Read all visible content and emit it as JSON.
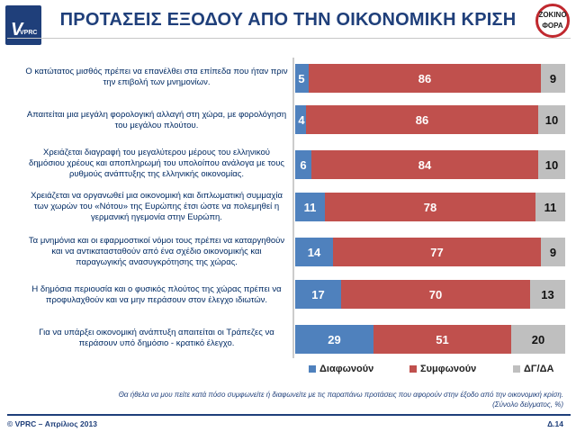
{
  "header": {
    "logo_text": "VPRC",
    "title": "ΠΡΟΤΑΣΕΙΣ ΕΞΟΔΟΥ ΑΠΟ ΤΗΝ ΟΙΚΟΝΟΜΙΚΗ ΚΡΙΣΗ",
    "badge_line1": "ΖΟΚΙΝΟ",
    "badge_line2": "ΦΟΡΑ"
  },
  "chart_data": {
    "type": "bar",
    "orientation": "horizontal",
    "stacked": true,
    "percent_scale": 100,
    "categories": [
      "Ο κατώτατος μισθός πρέπει να επανέλθει στα επίπεδα που ήταν πριν την επιβολή των μνημονίων.",
      "Απαιτείται μια μεγάλη φορολογική αλλαγή στη χώρα, με φορολόγηση του μεγάλου πλούτου.",
      "Χρειάζεται διαγραφή του μεγαλύτερου μέρους του ελληνικού δημόσιου χρέους και αποπληρωμή του υπολοίπου ανάλογα με τους ρυθμούς ανάπτυξης της ελληνικής οικονομίας.",
      "Χρειάζεται να οργανωθεί μια οικονομική και διπλωματική συμμαχία των χωρών του «Νότου» της Ευρώπης έτσι ώστε να πολεμηθεί η γερμανική ηγεμονία στην Ευρώπη.",
      "Τα μνημόνια και οι εφαρμοστικοί νόμοι τους πρέπει να καταργηθούν και να αντικατασταθούν από ένα σχέδιο οικονομικής και παραγωγικής ανασυγκρότησης της χώρας.",
      "Η δημόσια περιουσία και ο φυσικός πλούτος της χώρας πρέπει να προφυλαχθούν και να μην περάσουν στον έλεγχο ιδιωτών.",
      "Για να υπάρξει οικονομική ανάπτυξη απαιτείται οι Τράπεζες να περάσουν υπό δημόσιο - κρατικό έλεγχο."
    ],
    "series": [
      {
        "name": "Διαφωνούν",
        "color": "#4f81bd",
        "values": [
          5,
          4,
          6,
          11,
          14,
          17,
          29
        ]
      },
      {
        "name": "Συμφωνούν",
        "color": "#c0504d",
        "values": [
          86,
          86,
          84,
          78,
          77,
          70,
          51
        ]
      },
      {
        "name": "ΔΓ/ΔΑ",
        "color": "#bfbfbf",
        "values": [
          9,
          10,
          10,
          11,
          9,
          13,
          20
        ]
      }
    ]
  },
  "footnote": {
    "question": "Θα ήθελα να μου πείτε κατά πόσο συμφωνείτε ή διαφωνείτε με τις παραπάνω προτάσεις που αφορούν στην έξοδο από την οικονομική κρίση.",
    "base": "(Σύνολο δείγματος, %)"
  },
  "footer": {
    "copyright": "© VPRC – Απρίλιος 2013",
    "page": "Δ.14"
  }
}
